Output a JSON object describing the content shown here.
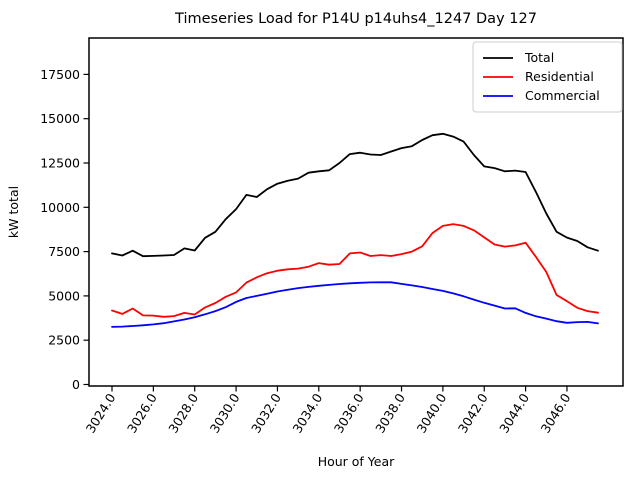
{
  "chart_data": {
    "type": "line",
    "title": "Timeseries Load for P14U p14uhs4_1247  Day 127",
    "xlabel": "Hour of Year",
    "ylabel": "kW total",
    "grid": false,
    "legend_position": "upper right",
    "xlim": [
      3022.9,
      3048.7
    ],
    "ylim": [
      0,
      19500
    ],
    "xticks": [
      3024,
      3026,
      3028,
      3030,
      3032,
      3034,
      3036,
      3038,
      3040,
      3042,
      3044,
      3046
    ],
    "xtick_labels": [
      "3024.0",
      "3026.0",
      "3028.0",
      "3030.0",
      "3032.0",
      "3034.0",
      "3036.0",
      "3038.0",
      "3040.0",
      "3042.0",
      "3044.0",
      "3046.0"
    ],
    "yticks": [
      0,
      2500,
      5000,
      7500,
      10000,
      12500,
      15000,
      17500
    ],
    "ytick_labels": [
      "0",
      "2500",
      "5000",
      "7500",
      "10000",
      "12500",
      "15000",
      "17500"
    ],
    "x": [
      3024.0,
      3024.5,
      3025.0,
      3025.5,
      3026.0,
      3026.5,
      3027.0,
      3027.5,
      3028.0,
      3028.5,
      3029.0,
      3029.5,
      3030.0,
      3030.5,
      3031.0,
      3031.5,
      3032.0,
      3032.5,
      3033.0,
      3033.5,
      3034.0,
      3034.5,
      3035.0,
      3035.5,
      3036.0,
      3036.5,
      3037.0,
      3037.5,
      3038.0,
      3038.5,
      3039.0,
      3039.5,
      3040.0,
      3040.5,
      3041.0,
      3041.5,
      3042.0,
      3042.5,
      3043.0,
      3043.5,
      3044.0,
      3044.5,
      3045.0,
      3045.5,
      3046.0,
      3046.5,
      3047.0,
      3047.5
    ],
    "series": [
      {
        "name": "Total",
        "color": "#000000",
        "values": [
          7400,
          7280,
          7550,
          7240,
          7260,
          7280,
          7310,
          7680,
          7560,
          8280,
          8620,
          9330,
          9900,
          10700,
          10580,
          11020,
          11330,
          11500,
          11620,
          11950,
          12030,
          12090,
          12500,
          13000,
          13080,
          12980,
          12950,
          13150,
          13340,
          13450,
          13800,
          14070,
          14150,
          13990,
          13710,
          12950,
          12310,
          12210,
          12030,
          12070,
          11990,
          10870,
          9650,
          8620,
          8290,
          8100,
          7740,
          7550
        ]
      },
      {
        "name": "Residential",
        "color": "#ff0000",
        "values": [
          4175,
          3985,
          4290,
          3900,
          3890,
          3820,
          3860,
          4040,
          3950,
          4350,
          4600,
          4950,
          5200,
          5750,
          6050,
          6280,
          6420,
          6500,
          6540,
          6650,
          6850,
          6760,
          6800,
          7400,
          7450,
          7250,
          7300,
          7250,
          7360,
          7500,
          7800,
          8550,
          8950,
          9050,
          8950,
          8700,
          8300,
          7900,
          7780,
          7850,
          8000,
          7200,
          6350,
          5050,
          4700,
          4330,
          4140,
          4050
        ]
      },
      {
        "name": "Commercial",
        "color": "#0000ff",
        "values": [
          3250,
          3270,
          3300,
          3340,
          3390,
          3460,
          3560,
          3670,
          3800,
          3960,
          4140,
          4360,
          4660,
          4880,
          5000,
          5120,
          5250,
          5350,
          5440,
          5510,
          5570,
          5620,
          5670,
          5710,
          5740,
          5760,
          5770,
          5770,
          5680,
          5590,
          5500,
          5390,
          5280,
          5140,
          4980,
          4790,
          4610,
          4450,
          4290,
          4300,
          4040,
          3850,
          3720,
          3570,
          3480,
          3520,
          3530,
          3450
        ]
      }
    ],
    "legend": [
      {
        "label": "Total",
        "color": "#000000"
      },
      {
        "label": "Residential",
        "color": "#ff0000"
      },
      {
        "label": "Commercial",
        "color": "#0000ff"
      }
    ],
    "frame_color": "#000000",
    "legend_border_color": "#cccccc",
    "background_color": "#ffffff"
  }
}
